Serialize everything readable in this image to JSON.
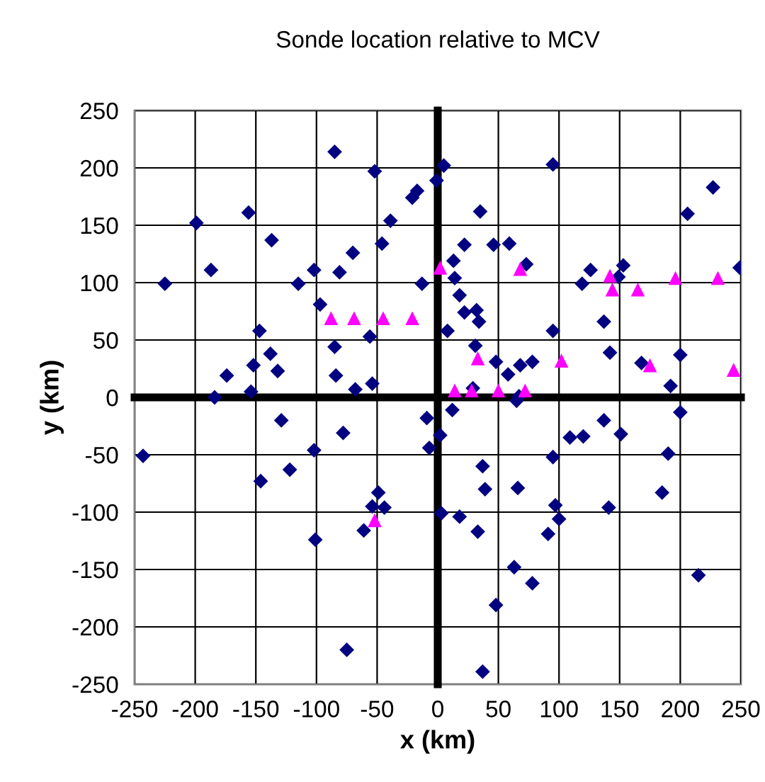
{
  "chart_data": {
    "type": "scatter",
    "title": "Sonde location relative to MCV",
    "xlabel": "x (km)",
    "ylabel": "y (km)",
    "xlim": [
      -250,
      250
    ],
    "ylim": [
      -250,
      250
    ],
    "xticks": [
      -250,
      -200,
      -150,
      -100,
      -50,
      0,
      50,
      100,
      150,
      200,
      250
    ],
    "yticks": [
      -250,
      -200,
      -150,
      -100,
      -50,
      0,
      50,
      100,
      150,
      200,
      250
    ],
    "grid": true,
    "legend": false,
    "series": [
      {
        "color": "#000080",
        "marker": "diamond",
        "x": [
          -85,
          -52,
          -17,
          -21,
          -1,
          5,
          -199,
          -156,
          -39,
          -137,
          -46,
          -70,
          -187,
          -102,
          -81,
          -225,
          -115,
          -13,
          -97,
          -147,
          -56,
          -85,
          -138,
          -152,
          -132,
          -174,
          -84,
          -54,
          -68,
          -154,
          -184,
          -129,
          -9,
          95,
          227,
          206,
          35,
          22,
          46,
          59,
          13,
          73,
          14,
          126,
          153,
          149,
          249,
          18,
          119,
          22,
          32,
          34,
          8,
          137,
          95,
          31,
          142,
          48,
          78,
          68,
          58,
          168,
          200,
          192,
          29,
          65,
          67,
          12,
          200,
          137,
          -243,
          -78,
          2,
          -7,
          -102,
          -122,
          -146,
          -49,
          -54,
          -44,
          3,
          -61,
          -101,
          -75,
          109,
          120,
          151,
          190,
          37,
          95,
          39,
          66,
          185,
          18,
          97,
          100,
          141,
          33,
          91,
          63,
          78,
          215,
          48,
          37
        ],
        "values": [
          214,
          197,
          180,
          174,
          189,
          202,
          152,
          161,
          154,
          137,
          134,
          126,
          111,
          111,
          109,
          99,
          99,
          99,
          81,
          58,
          53,
          44,
          38,
          28,
          23,
          19,
          19,
          12,
          7,
          5,
          0,
          -20,
          -18,
          203,
          183,
          160,
          162,
          133,
          133,
          134,
          119,
          116,
          104,
          111,
          115,
          105,
          113,
          89,
          99,
          74,
          76,
          66,
          58,
          66,
          58,
          45,
          39,
          31,
          31,
          28,
          20,
          30,
          37,
          10,
          8,
          -3,
          1,
          -11,
          -13,
          -20,
          -51,
          -31,
          -33,
          -44,
          -46,
          -63,
          -73,
          -83,
          -95,
          -96,
          -101,
          -116,
          -124,
          -220,
          -35,
          -34,
          -32,
          -49,
          -60,
          -52,
          -80,
          -79,
          -83,
          -104,
          -94,
          -106,
          -96,
          -117,
          -119,
          -148,
          -162,
          -155,
          -181,
          -239
        ]
      },
      {
        "color": "#ff00ff",
        "marker": "triangle",
        "x": [
          -88,
          -69,
          -45,
          -21,
          2,
          68,
          142,
          144,
          165,
          196,
          231,
          33,
          102,
          175,
          244,
          14,
          28,
          50,
          72,
          -52
        ],
        "values": [
          69,
          69,
          69,
          69,
          113,
          112,
          106,
          94,
          94,
          104,
          104,
          34,
          32,
          28,
          24,
          6,
          6,
          6,
          6,
          -107
        ]
      }
    ]
  }
}
